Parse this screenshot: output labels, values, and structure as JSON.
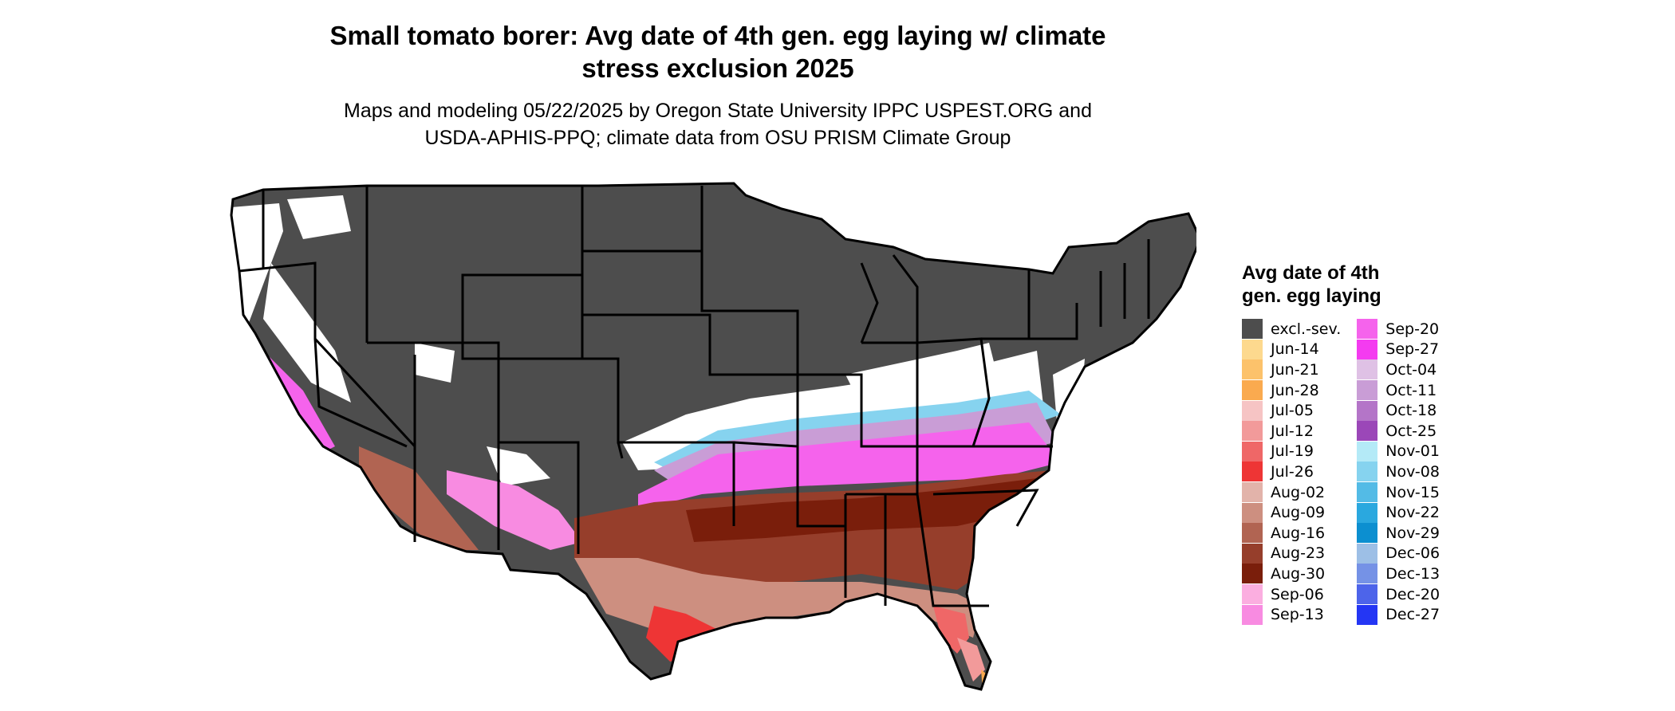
{
  "title_line1": "Small tomato borer: Avg date of 4th gen. egg laying w/ climate",
  "title_line2": "stress exclusion 2025",
  "subtitle_line1": "Maps and modeling 05/22/2025 by Oregon State University IPPC USPEST.ORG and",
  "subtitle_line2": "USDA-APHIS-PPQ; climate data from OSU PRISM Climate Group",
  "legend": {
    "title_line1": "Avg date of 4th",
    "title_line2": "gen. egg laying",
    "col1": [
      {
        "label": "excl.-sev.",
        "color": "#4d4d4d"
      },
      {
        "label": "Jun-14",
        "color": "#fdd98e"
      },
      {
        "label": "Jun-21",
        "color": "#fcc26b"
      },
      {
        "label": "Jun-28",
        "color": "#faaa4f"
      },
      {
        "label": "Jul-05",
        "color": "#f6c4c4"
      },
      {
        "label": "Jul-12",
        "color": "#f29a9a"
      },
      {
        "label": "Jul-19",
        "color": "#ef6767"
      },
      {
        "label": "Jul-26",
        "color": "#ee3535"
      },
      {
        "label": "Aug-02",
        "color": "#e2b3aa"
      },
      {
        "label": "Aug-09",
        "color": "#cd8f80"
      },
      {
        "label": "Aug-16",
        "color": "#b16452"
      },
      {
        "label": "Aug-23",
        "color": "#963e2b"
      },
      {
        "label": "Aug-30",
        "color": "#7a1e0b"
      },
      {
        "label": "Sep-06",
        "color": "#fbaee0"
      },
      {
        "label": "Sep-13",
        "color": "#f88be1"
      }
    ],
    "col2": [
      {
        "label": "Sep-20",
        "color": "#f563ec"
      },
      {
        "label": "Sep-27",
        "color": "#f43bf0"
      },
      {
        "label": "Oct-04",
        "color": "#dfc1e5"
      },
      {
        "label": "Oct-11",
        "color": "#c99dd6"
      },
      {
        "label": "Oct-18",
        "color": "#b475c8"
      },
      {
        "label": "Oct-25",
        "color": "#9b47b8"
      },
      {
        "label": "Nov-01",
        "color": "#b4eaf7"
      },
      {
        "label": "Nov-08",
        "color": "#86d3ef"
      },
      {
        "label": "Nov-15",
        "color": "#53bbe6"
      },
      {
        "label": "Nov-22",
        "color": "#2aa8df"
      },
      {
        "label": "Nov-29",
        "color": "#0c8fd0"
      },
      {
        "label": "Dec-06",
        "color": "#9dbfe6"
      },
      {
        "label": "Dec-13",
        "color": "#7592e6"
      },
      {
        "label": "Dec-20",
        "color": "#4d64ea"
      },
      {
        "label": "Dec-27",
        "color": "#2436f4"
      }
    ]
  }
}
